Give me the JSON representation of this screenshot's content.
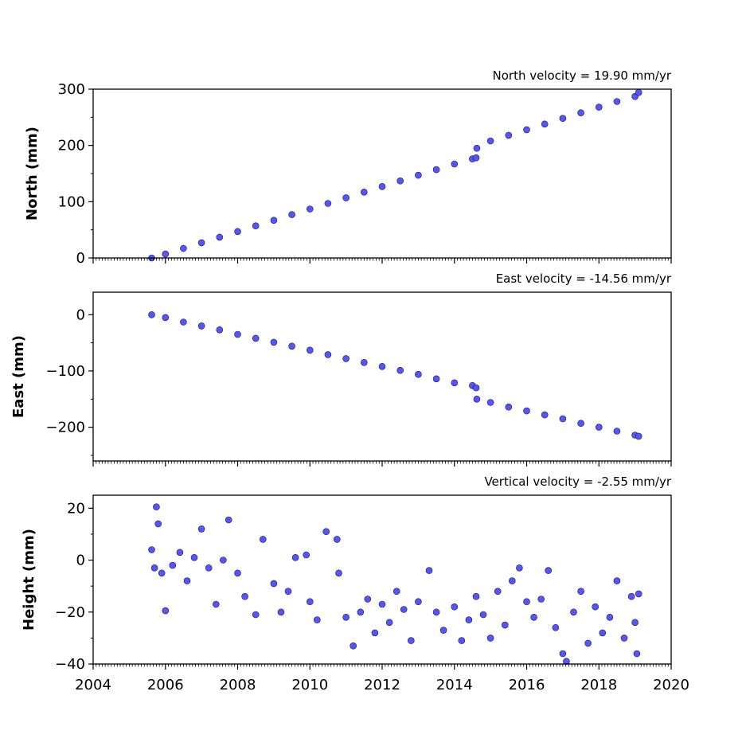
{
  "chart_data": [
    {
      "type": "scatter",
      "velocity_label": "North velocity = 19.90 mm/yr",
      "ylabel": "North (mm)",
      "ylim": [
        0,
        300
      ],
      "yticks": [
        0,
        100,
        200,
        300
      ],
      "ytick_labels": [
        "0",
        "100",
        "200",
        "300"
      ],
      "xlim": [
        2004,
        2020
      ],
      "xticks": [
        2004,
        2006,
        2008,
        2010,
        2012,
        2014,
        2016,
        2018,
        2020
      ],
      "xtick_labels": [],
      "marker_color": "#5555ff",
      "edge_color": "#1a1a40",
      "points": [
        [
          2005.62,
          0
        ],
        [
          2006.0,
          7
        ],
        [
          2006.5,
          17
        ],
        [
          2007.0,
          27
        ],
        [
          2007.5,
          37
        ],
        [
          2008.0,
          47
        ],
        [
          2008.5,
          57
        ],
        [
          2009.0,
          67
        ],
        [
          2009.5,
          77
        ],
        [
          2010.0,
          87
        ],
        [
          2010.5,
          97
        ],
        [
          2011.0,
          107
        ],
        [
          2011.5,
          117
        ],
        [
          2012.0,
          127
        ],
        [
          2012.5,
          137
        ],
        [
          2013.0,
          147
        ],
        [
          2013.5,
          157
        ],
        [
          2014.0,
          167
        ],
        [
          2014.5,
          176
        ],
        [
          2014.6,
          178
        ],
        [
          2014.62,
          195
        ],
        [
          2015.0,
          208
        ],
        [
          2015.5,
          218
        ],
        [
          2016.0,
          228
        ],
        [
          2016.5,
          238
        ],
        [
          2017.0,
          248
        ],
        [
          2017.5,
          258
        ],
        [
          2018.0,
          268
        ],
        [
          2018.5,
          278
        ],
        [
          2019.0,
          287
        ],
        [
          2019.1,
          294
        ]
      ]
    },
    {
      "type": "scatter",
      "velocity_label": "East velocity = -14.56 mm/yr",
      "ylabel": "East (mm)",
      "ylim": [
        -260,
        40
      ],
      "yticks": [
        -200,
        -100,
        0
      ],
      "ytick_labels": [
        "−200",
        "−100",
        "0"
      ],
      "xlim": [
        2004,
        2020
      ],
      "xticks": [
        2004,
        2006,
        2008,
        2010,
        2012,
        2014,
        2016,
        2018,
        2020
      ],
      "xtick_labels": [],
      "marker_color": "#5555ff",
      "edge_color": "#1a1a40",
      "points": [
        [
          2005.62,
          0
        ],
        [
          2006.0,
          -5
        ],
        [
          2006.5,
          -13
        ],
        [
          2007.0,
          -20
        ],
        [
          2007.5,
          -27
        ],
        [
          2008.0,
          -35
        ],
        [
          2008.5,
          -42
        ],
        [
          2009.0,
          -49
        ],
        [
          2009.5,
          -56
        ],
        [
          2010.0,
          -63
        ],
        [
          2010.5,
          -71
        ],
        [
          2011.0,
          -78
        ],
        [
          2011.5,
          -85
        ],
        [
          2012.0,
          -92
        ],
        [
          2012.5,
          -99
        ],
        [
          2013.0,
          -106
        ],
        [
          2013.5,
          -114
        ],
        [
          2014.0,
          -121
        ],
        [
          2014.5,
          -126
        ],
        [
          2014.6,
          -130
        ],
        [
          2014.62,
          -150
        ],
        [
          2015.0,
          -156
        ],
        [
          2015.5,
          -164
        ],
        [
          2016.0,
          -171
        ],
        [
          2016.5,
          -178
        ],
        [
          2017.0,
          -185
        ],
        [
          2017.5,
          -193
        ],
        [
          2018.0,
          -200
        ],
        [
          2018.5,
          -207
        ],
        [
          2019.0,
          -214
        ],
        [
          2019.1,
          -216
        ]
      ]
    },
    {
      "type": "scatter",
      "velocity_label": "Vertical velocity = -2.55 mm/yr",
      "ylabel": "Height (mm)",
      "ylim": [
        -40,
        25
      ],
      "yticks": [
        -40,
        -20,
        0,
        20
      ],
      "ytick_labels": [
        "−40",
        "−20",
        "0",
        "20"
      ],
      "xlim": [
        2004,
        2020
      ],
      "xticks": [
        2004,
        2006,
        2008,
        2010,
        2012,
        2014,
        2016,
        2018,
        2020
      ],
      "xtick_labels": [
        "2004",
        "2006",
        "2008",
        "2010",
        "2012",
        "2014",
        "2016",
        "2018",
        "2020"
      ],
      "marker_color": "#5555ff",
      "edge_color": "#1a1a40",
      "points": [
        [
          2005.62,
          4
        ],
        [
          2005.7,
          -3
        ],
        [
          2005.75,
          20.5
        ],
        [
          2005.8,
          14
        ],
        [
          2005.9,
          -5
        ],
        [
          2006.0,
          -19.5
        ],
        [
          2006.2,
          -2
        ],
        [
          2006.4,
          3
        ],
        [
          2006.6,
          -8
        ],
        [
          2006.8,
          1
        ],
        [
          2007.0,
          12
        ],
        [
          2007.2,
          -3
        ],
        [
          2007.4,
          -17
        ],
        [
          2007.6,
          0
        ],
        [
          2007.75,
          15.5
        ],
        [
          2008.0,
          -5
        ],
        [
          2008.2,
          -14
        ],
        [
          2008.5,
          -21
        ],
        [
          2008.7,
          8
        ],
        [
          2009.0,
          -9
        ],
        [
          2009.2,
          -20
        ],
        [
          2009.4,
          -12
        ],
        [
          2009.6,
          1
        ],
        [
          2009.9,
          2
        ],
        [
          2010.0,
          -16
        ],
        [
          2010.2,
          -23
        ],
        [
          2010.45,
          11
        ],
        [
          2010.75,
          8
        ],
        [
          2010.8,
          -5
        ],
        [
          2011.0,
          -22
        ],
        [
          2011.2,
          -33
        ],
        [
          2011.4,
          -20
        ],
        [
          2011.6,
          -15
        ],
        [
          2011.8,
          -28
        ],
        [
          2012.0,
          -17
        ],
        [
          2012.2,
          -24
        ],
        [
          2012.4,
          -12
        ],
        [
          2012.6,
          -19
        ],
        [
          2012.8,
          -31
        ],
        [
          2013.0,
          -16
        ],
        [
          2013.3,
          -4
        ],
        [
          2013.5,
          -20
        ],
        [
          2013.7,
          -27
        ],
        [
          2014.0,
          -18
        ],
        [
          2014.2,
          -31
        ],
        [
          2014.4,
          -23
        ],
        [
          2014.6,
          -14
        ],
        [
          2014.8,
          -21
        ],
        [
          2015.0,
          -30
        ],
        [
          2015.2,
          -12
        ],
        [
          2015.4,
          -25
        ],
        [
          2015.6,
          -8
        ],
        [
          2015.8,
          -3
        ],
        [
          2016.0,
          -16
        ],
        [
          2016.2,
          -22
        ],
        [
          2016.4,
          -15
        ],
        [
          2016.6,
          -4
        ],
        [
          2016.8,
          -26
        ],
        [
          2017.0,
          -36
        ],
        [
          2017.1,
          -39
        ],
        [
          2017.3,
          -20
        ],
        [
          2017.5,
          -12
        ],
        [
          2017.7,
          -32
        ],
        [
          2017.9,
          -18
        ],
        [
          2018.1,
          -28
        ],
        [
          2018.3,
          -22
        ],
        [
          2018.5,
          -8
        ],
        [
          2018.7,
          -30
        ],
        [
          2018.9,
          -14
        ],
        [
          2019.0,
          -24
        ],
        [
          2019.05,
          -36
        ],
        [
          2019.1,
          -13
        ]
      ]
    }
  ]
}
